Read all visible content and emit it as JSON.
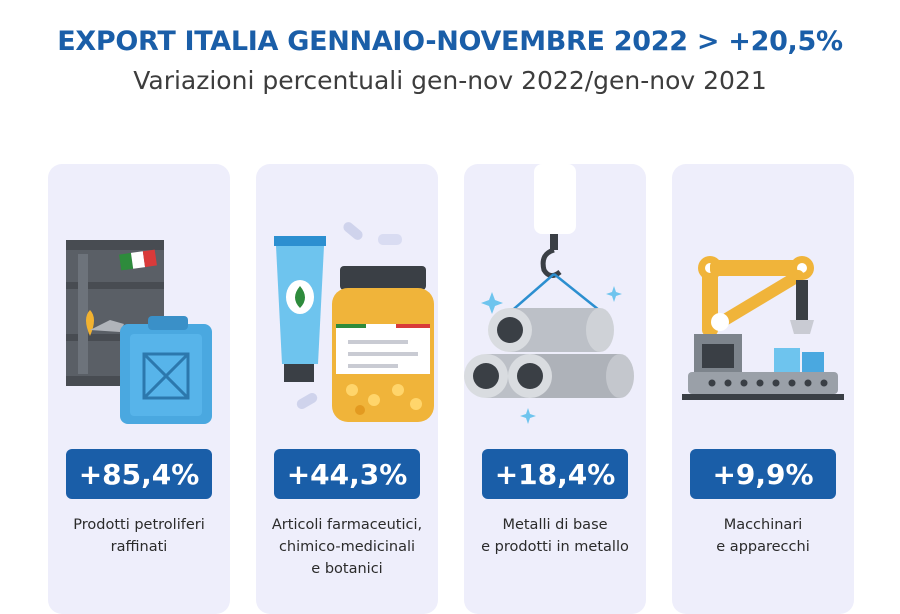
{
  "header": {
    "title": "EXPORT ITALIA GENNAIO-NOVEMBRE 2022 > +20,5%",
    "subtitle": "Variazioni percentuali gen-nov 2022/gen-nov 2021"
  },
  "cards": [
    {
      "value": "+85,4%",
      "label_lines": [
        "Prodotti petroliferi",
        "raffinati"
      ],
      "icon": "oil-barrel-jerrycan-icon"
    },
    {
      "value": "+44,3%",
      "label_lines": [
        "Articoli farmaceutici,",
        "chimico-medicinali",
        "e botanici"
      ],
      "icon": "medicine-tube-jar-icon"
    },
    {
      "value": "+18,4%",
      "label_lines": [
        "Metalli di base",
        "e prodotti in metallo"
      ],
      "icon": "metal-pipes-crane-icon"
    },
    {
      "value": "+9,9%",
      "label_lines": [
        "Macchinari",
        "e apparecchi"
      ],
      "icon": "robotic-arm-conveyor-icon"
    }
  ],
  "colors": {
    "primary": "#1a5ea8",
    "card_bg": "#eeeefb",
    "text": "#2b2b2b"
  }
}
